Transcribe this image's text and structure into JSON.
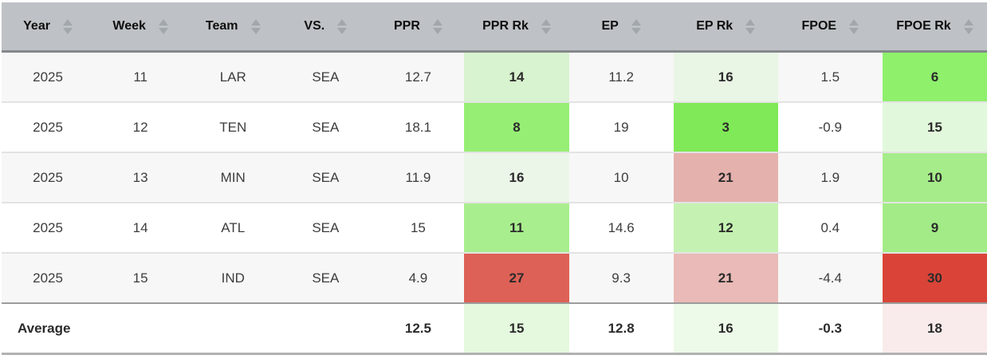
{
  "colors": {
    "header_bg": "#bec2c6",
    "header_border": "#84888b",
    "row_alt_bg": "#f7f7f7",
    "row_separator": "#e3e3e3",
    "average_separator": "#9b9b9b",
    "bottom_border": "#b1b1b1",
    "sort_arrow": "#a2a7ac",
    "rank_good": "#80e957",
    "rank_bad": "#da4438"
  },
  "icons": {
    "sort": "sort-up-down-arrows"
  },
  "table": {
    "columns": [
      {
        "key": "year",
        "label": "Year"
      },
      {
        "key": "week",
        "label": "Week"
      },
      {
        "key": "team",
        "label": "Team"
      },
      {
        "key": "vs",
        "label": "VS."
      },
      {
        "key": "ppr",
        "label": "PPR"
      },
      {
        "key": "ppr-rk",
        "label": "PPR Rk"
      },
      {
        "key": "ep",
        "label": "EP"
      },
      {
        "key": "ep-rk",
        "label": "EP Rk"
      },
      {
        "key": "fpoe",
        "label": "FPOE"
      },
      {
        "key": "fpoe-rk",
        "label": "FPOE Rk"
      }
    ],
    "rows": [
      {
        "cells": [
          {
            "text": "2025"
          },
          {
            "text": "11"
          },
          {
            "text": "LAR"
          },
          {
            "text": "SEA"
          },
          {
            "text": "12.7"
          },
          {
            "text": "14",
            "bold": true,
            "bg": "#d8f3cf"
          },
          {
            "text": "11.2"
          },
          {
            "text": "16",
            "bold": true,
            "bg": "#e9f5e5"
          },
          {
            "text": "1.5"
          },
          {
            "text": "6",
            "bold": true,
            "bg": "#8ff06c"
          }
        ]
      },
      {
        "cells": [
          {
            "text": "2025"
          },
          {
            "text": "12"
          },
          {
            "text": "TEN"
          },
          {
            "text": "SEA"
          },
          {
            "text": "18.1"
          },
          {
            "text": "8",
            "bold": true,
            "bg": "#97ee75"
          },
          {
            "text": "19"
          },
          {
            "text": "3",
            "bold": true,
            "bg": "#80e957"
          },
          {
            "text": "-0.9"
          },
          {
            "text": "15",
            "bold": true,
            "bg": "#e2f8dc"
          }
        ]
      },
      {
        "cells": [
          {
            "text": "2025"
          },
          {
            "text": "13"
          },
          {
            "text": "MIN"
          },
          {
            "text": "SEA"
          },
          {
            "text": "11.9"
          },
          {
            "text": "16",
            "bold": true,
            "bg": "#ecf6e8"
          },
          {
            "text": "10"
          },
          {
            "text": "21",
            "bold": true,
            "bg": "#e5b1ad"
          },
          {
            "text": "1.9"
          },
          {
            "text": "10",
            "bold": true,
            "bg": "#a6ec8a"
          }
        ]
      },
      {
        "cells": [
          {
            "text": "2025"
          },
          {
            "text": "14"
          },
          {
            "text": "ATL"
          },
          {
            "text": "SEA"
          },
          {
            "text": "15"
          },
          {
            "text": "11",
            "bold": true,
            "bg": "#a9ee8e"
          },
          {
            "text": "14.6"
          },
          {
            "text": "12",
            "bold": true,
            "bg": "#c5f2b2"
          },
          {
            "text": "0.4"
          },
          {
            "text": "9",
            "bold": true,
            "bg": "#a3eb86"
          }
        ]
      },
      {
        "cells": [
          {
            "text": "2025"
          },
          {
            "text": "15"
          },
          {
            "text": "IND"
          },
          {
            "text": "SEA"
          },
          {
            "text": "4.9"
          },
          {
            "text": "27",
            "bold": true,
            "bg": "#dd6156"
          },
          {
            "text": "9.3"
          },
          {
            "text": "21",
            "bold": true,
            "bg": "#e9bab7"
          },
          {
            "text": "-4.4"
          },
          {
            "text": "30",
            "bold": true,
            "bg": "#da4438"
          }
        ]
      },
      {
        "average": true,
        "cells": [
          {
            "text": "Average",
            "bold": true,
            "left": true
          },
          {
            "text": ""
          },
          {
            "text": ""
          },
          {
            "text": ""
          },
          {
            "text": "12.5",
            "bold": true
          },
          {
            "text": "15",
            "bold": true,
            "bg": "#e4f9de"
          },
          {
            "text": "12.8",
            "bold": true
          },
          {
            "text": "16",
            "bold": true,
            "bg": "#edfae9"
          },
          {
            "text": "-0.3",
            "bold": true
          },
          {
            "text": "18",
            "bold": true,
            "bg": "#f9ebeb"
          }
        ]
      }
    ]
  }
}
